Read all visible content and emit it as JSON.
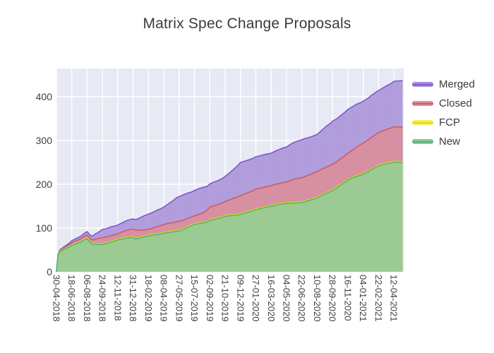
{
  "title": "Matrix Spec Change Proposals",
  "colors": {
    "plot_bg": "#e7eaf4",
    "grid": "#ffffff",
    "text": "#3b3b3b"
  },
  "legend": [
    {
      "label": "Merged",
      "fill": "#a78fd7",
      "line": "#8257c9"
    },
    {
      "label": "Closed",
      "fill": "#dd8e96",
      "line": "#cb5a6c"
    },
    {
      "label": "FCP",
      "fill": "#f4f05c",
      "line": "#ded426"
    },
    {
      "label": "New",
      "fill": "#8cc79a",
      "line": "#57b46f"
    }
  ],
  "axes": {
    "y_ticks": [
      0,
      100,
      200,
      300,
      400
    ],
    "x_tick_labels": [
      "30-04-2018",
      "18-06-2018",
      "06-08-2018",
      "24-09-2018",
      "12-11-2018",
      "31-12-2018",
      "18-02-2019",
      "08-04-2019",
      "27-05-2019",
      "15-07-2019",
      "02-09-2019",
      "21-10-2019",
      "09-12-2019",
      "27-01-2020",
      "16-03-2020",
      "04-05-2020",
      "22-06-2020",
      "10-08-2020",
      "28-09-2020",
      "16-11-2020",
      "04-01-2021",
      "22-02-2021",
      "12-04-2021"
    ]
  },
  "chart_data": {
    "type": "area",
    "stacked": true,
    "title": "Matrix Spec Change Proposals",
    "xlabel": "",
    "ylabel": "",
    "ylim": [
      0,
      464
    ],
    "grid": true,
    "legend_position": "right",
    "date_format": "DD-MM-YYYY",
    "x": [
      "30-04-2018",
      "05-05-2018",
      "12-05-2018",
      "26-05-2018",
      "09-06-2018",
      "18-06-2018",
      "02-07-2018",
      "16-07-2018",
      "30-07-2018",
      "06-08-2018",
      "13-08-2018",
      "20-08-2018",
      "03-09-2018",
      "17-09-2018",
      "24-09-2018",
      "08-10-2018",
      "22-10-2018",
      "05-11-2018",
      "12-11-2018",
      "26-11-2018",
      "10-12-2018",
      "24-12-2018",
      "31-12-2018",
      "07-01-2019",
      "21-01-2019",
      "04-02-2019",
      "18-02-2019",
      "04-03-2019",
      "18-03-2019",
      "01-04-2019",
      "08-04-2019",
      "22-04-2019",
      "06-05-2019",
      "20-05-2019",
      "27-05-2019",
      "10-06-2019",
      "24-06-2019",
      "08-07-2019",
      "15-07-2019",
      "29-07-2019",
      "12-08-2019",
      "26-08-2019",
      "02-09-2019",
      "16-09-2019",
      "30-09-2019",
      "14-10-2019",
      "21-10-2019",
      "04-11-2019",
      "18-11-2019",
      "02-12-2019",
      "09-12-2019",
      "23-12-2019",
      "06-01-2020",
      "20-01-2020",
      "27-01-2020",
      "10-02-2020",
      "24-02-2020",
      "09-03-2020",
      "16-03-2020",
      "30-03-2020",
      "13-04-2020",
      "27-04-2020",
      "04-05-2020",
      "18-05-2020",
      "01-06-2020",
      "15-06-2020",
      "22-06-2020",
      "06-07-2020",
      "20-07-2020",
      "03-08-2020",
      "10-08-2020",
      "24-08-2020",
      "07-09-2020",
      "21-09-2020",
      "28-09-2020",
      "12-10-2020",
      "26-10-2020",
      "09-11-2020",
      "16-11-2020",
      "30-11-2020",
      "14-12-2020",
      "28-12-2020",
      "04-01-2021",
      "18-01-2021",
      "01-02-2021",
      "15-02-2021",
      "22-02-2021",
      "08-03-2021",
      "22-03-2021",
      "05-04-2021",
      "12-04-2021",
      "26-04-2021",
      "10-05-2021"
    ],
    "series": [
      {
        "name": "New",
        "fill": "#8cc79a",
        "line": "#57b46f",
        "values": [
          0,
          38,
          47,
          52,
          56,
          60,
          64,
          68,
          74,
          76,
          69,
          64,
          63,
          62,
          62,
          65,
          68,
          71,
          73,
          75,
          77,
          78,
          79,
          75,
          77,
          80,
          82,
          84,
          85,
          87,
          88,
          90,
          91,
          93,
          93,
          97,
          102,
          106,
          108,
          110,
          112,
          114,
          118,
          120,
          122,
          125,
          127,
          128,
          129,
          130,
          131,
          134,
          137,
          140,
          142,
          144,
          147,
          149,
          150,
          152,
          154,
          156,
          156,
          157,
          157,
          158,
          158,
          161,
          164,
          167,
          169,
          174,
          179,
          183,
          186,
          192,
          199,
          206,
          210,
          214,
          218,
          221,
          223,
          228,
          234,
          240,
          242,
          245,
          247,
          249,
          250,
          251,
          248
        ]
      },
      {
        "name": "FCP",
        "fill": "#f4f05c",
        "line": "#ded426",
        "values": [
          0,
          1,
          1,
          1,
          2,
          2,
          2,
          2,
          2,
          2,
          2,
          2,
          2,
          2,
          2,
          2,
          2,
          2,
          2,
          2,
          2,
          2,
          2,
          2,
          2,
          2,
          2,
          2,
          2,
          2,
          2,
          2,
          2,
          2,
          2,
          2,
          2,
          2,
          2,
          2,
          2,
          2,
          2,
          2,
          2,
          2,
          2,
          2,
          2,
          2,
          2,
          2,
          2,
          2,
          2,
          2,
          2,
          2,
          2,
          2,
          2,
          2,
          2,
          2,
          2,
          2,
          2,
          2,
          2,
          2,
          2,
          2,
          2,
          2,
          2,
          2,
          2,
          2,
          2,
          2,
          2,
          2,
          2,
          2,
          2,
          2,
          2,
          2,
          2,
          2,
          2,
          2,
          2
        ]
      },
      {
        "name": "Closed",
        "fill": "#dd8e96",
        "line": "#cb5a6c",
        "values": [
          0,
          1,
          2,
          3,
          3,
          4,
          5,
          5,
          6,
          6,
          7,
          7,
          10,
          13,
          14,
          13,
          13,
          12,
          12,
          14,
          16,
          17,
          17,
          18,
          16,
          14,
          13,
          14,
          16,
          17,
          18,
          19,
          19,
          20,
          20,
          19,
          18,
          18,
          18,
          19,
          21,
          26,
          28,
          29,
          30,
          31,
          32,
          34,
          37,
          40,
          41,
          42,
          43,
          44,
          45,
          45,
          45,
          45,
          45,
          46,
          46,
          47,
          47,
          50,
          53,
          54,
          55,
          56,
          57,
          58,
          58,
          58,
          58,
          58,
          58,
          58,
          58,
          59,
          59,
          62,
          65,
          68,
          69,
          70,
          72,
          73,
          74,
          75,
          77,
          78,
          79,
          78,
          80
        ]
      },
      {
        "name": "Merged",
        "fill": "#a78fd7",
        "line": "#8257c9",
        "values": [
          0,
          0,
          1,
          2,
          4,
          5,
          5,
          6,
          7,
          8,
          8,
          8,
          12,
          16,
          19,
          19,
          20,
          20,
          20,
          21,
          22,
          23,
          23,
          24,
          28,
          32,
          35,
          36,
          38,
          39,
          40,
          44,
          50,
          55,
          57,
          58,
          58,
          57,
          58,
          59,
          58,
          54,
          53,
          54,
          55,
          56,
          57,
          62,
          67,
          72,
          76,
          75,
          74,
          74,
          74,
          74,
          74,
          74,
          74,
          76,
          78,
          79,
          80,
          83,
          85,
          86,
          87,
          86,
          85,
          85,
          85,
          89,
          93,
          96,
          98,
          98,
          99,
          99,
          100,
          99,
          98,
          96,
          96,
          96,
          96,
          96,
          96,
          98,
          100,
          102,
          104,
          105,
          107
        ]
      }
    ]
  }
}
